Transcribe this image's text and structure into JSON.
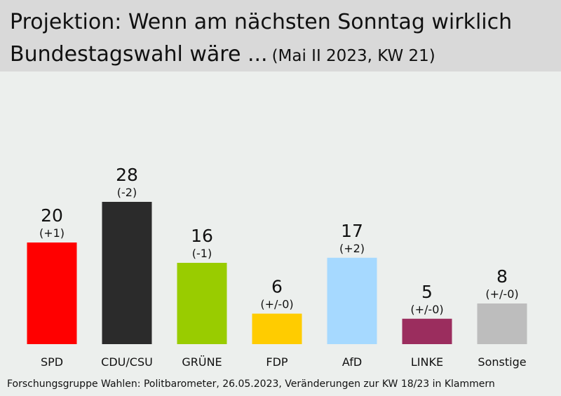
{
  "header": {
    "title_line1": "Projektion: Wenn am nächsten Sonntag wirklich",
    "title_line2": "Bundestagswahl wäre ...",
    "subtitle": "(Mai II 2023, KW 21)"
  },
  "source": "Forschungsgruppe  Wahlen: Politbarometer, 26.05.2023,  Veränderungen  zur KW 18/23 in Klammern",
  "chart_data": {
    "type": "bar",
    "title": "Projektion: Wenn am nächsten Sonntag wirklich Bundestagswahl wäre ...",
    "subtitle": "(Mai II 2023, KW 21)",
    "categories": [
      "SPD",
      "CDU/CSU",
      "GRÜNE",
      "FDP",
      "AfD",
      "LINKE",
      "Sonstige"
    ],
    "values": [
      20,
      28,
      16,
      6,
      17,
      5,
      8
    ],
    "changes": [
      "(+1)",
      "(-2)",
      "(-1)",
      "(+/-0)",
      "(+2)",
      "(+/-0)",
      "(+/-0)"
    ],
    "colors": [
      "#ff0000",
      "#2b2b2b",
      "#99cc00",
      "#ffcc00",
      "#a6d9ff",
      "#9b2d5e",
      "#bdbdbd"
    ],
    "grid": false,
    "legend": "none"
  }
}
